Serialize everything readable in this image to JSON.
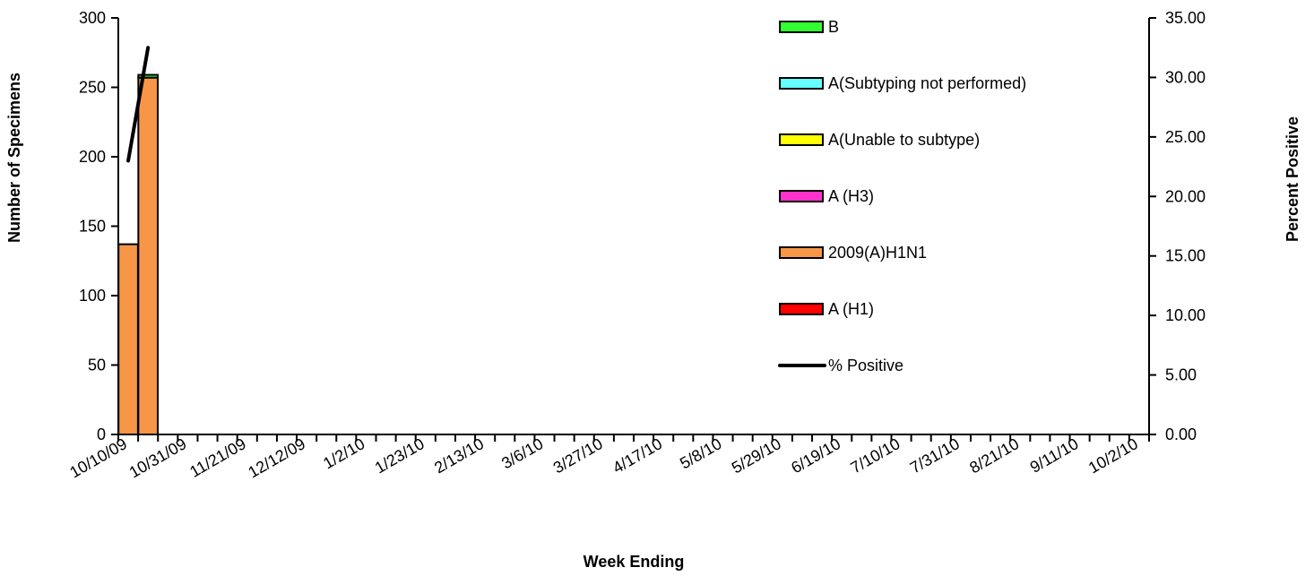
{
  "chart_data": {
    "type": "bar",
    "stacked": true,
    "title": "",
    "xlabel": "Week Ending",
    "ylabel": "Number of Specimens",
    "y2label": "Percent Positive",
    "ylim": [
      0,
      300
    ],
    "y_ticks": [
      "0",
      "50",
      "100",
      "150",
      "200",
      "250",
      "300"
    ],
    "y2lim": [
      0,
      35
    ],
    "y2_ticks": [
      "0.00",
      "5.00",
      "10.00",
      "15.00",
      "20.00",
      "25.00",
      "30.00",
      "35.00"
    ],
    "week_count": 52,
    "x_tick_labels": [
      "10/10/09",
      "10/31/09",
      "11/21/09",
      "12/12/09",
      "1/2/10",
      "1/23/10",
      "2/13/10",
      "3/6/10",
      "3/27/10",
      "4/17/10",
      "5/8/10",
      "5/29/10",
      "6/19/10",
      "7/10/10",
      "7/31/10",
      "8/21/10",
      "9/11/10",
      "10/2/10"
    ],
    "data_weeks": [
      "10/10/09",
      "10/17/09"
    ],
    "series": [
      {
        "name": "A (H1)",
        "color": "#ff0000",
        "values": [
          0,
          0
        ]
      },
      {
        "name": "2009(A)H1N1",
        "color": "#f79646",
        "values": [
          137,
          257
        ]
      },
      {
        "name": "A (H3)",
        "color": "#ff33cc",
        "values": [
          0,
          0
        ]
      },
      {
        "name": "A(Unable to subtype)",
        "color": "#ffff00",
        "values": [
          0,
          0
        ]
      },
      {
        "name": "A(Subtyping not performed)",
        "color": "#66ffff",
        "values": [
          0,
          0
        ]
      },
      {
        "name": "B",
        "color": "#33ff33",
        "values": [
          0,
          2
        ]
      }
    ],
    "line_series": {
      "name": "% Positive",
      "color": "#000000",
      "axis": "right",
      "values": [
        23.0,
        32.5
      ]
    },
    "legend_order": [
      "B",
      "A(Subtyping not performed)",
      "A(Unable to subtype)",
      "A (H3)",
      "2009(A)H1N1",
      "A (H1)",
      "% Positive"
    ],
    "legend_position": "top-right (inside plot)",
    "grid": false
  }
}
